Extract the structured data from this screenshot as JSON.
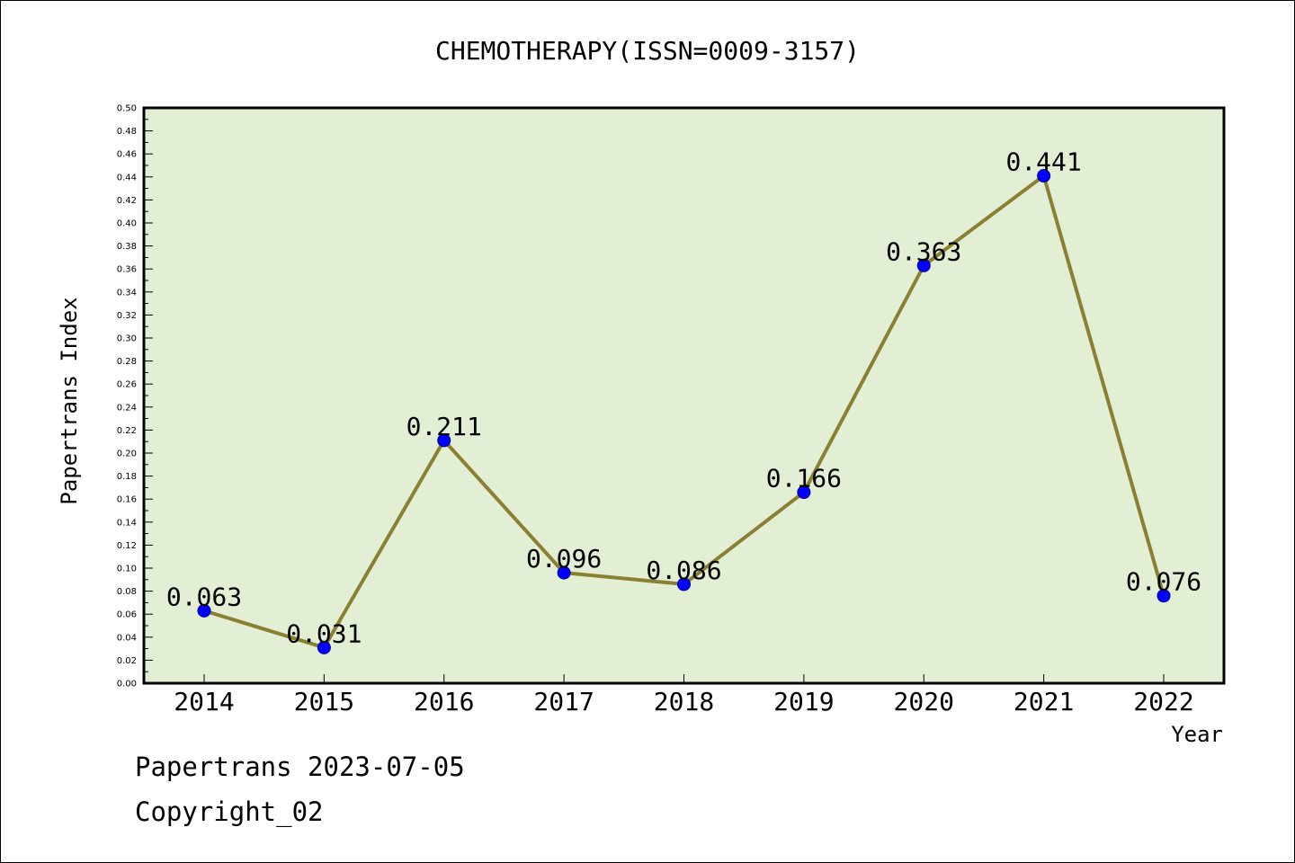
{
  "chart_data": {
    "type": "line",
    "title": "CHEMOTHERAPY(ISSN=0009-3157)",
    "xlabel": "Year",
    "ylabel": "Papertrans Index",
    "categories": [
      "2014",
      "2015",
      "2016",
      "2017",
      "2018",
      "2019",
      "2020",
      "2021",
      "2022"
    ],
    "values": [
      0.063,
      0.031,
      0.211,
      0.096,
      0.086,
      0.166,
      0.363,
      0.441,
      0.076
    ],
    "data_labels": [
      "0.063",
      "0.031",
      "0.211",
      "0.096",
      "0.086",
      "0.166",
      "0.363",
      "0.441",
      "0.076"
    ],
    "ylim": [
      0,
      0.5
    ],
    "yticks": [
      "0.00",
      "0.02",
      "0.04",
      "0.06",
      "0.08",
      "0.10",
      "0.12",
      "0.14",
      "0.16",
      "0.18",
      "0.20",
      "0.22",
      "0.24",
      "0.26",
      "0.28",
      "0.30",
      "0.32",
      "0.34",
      "0.36",
      "0.38",
      "0.40",
      "0.42",
      "0.44",
      "0.46",
      "0.48",
      "0.50"
    ],
    "grid": false,
    "colors": {
      "plot_background": "#e2efd5",
      "line": "#8b8032",
      "marker": "#0000ff",
      "axis": "#000000"
    }
  },
  "footer": {
    "source": "Papertrans 2023-07-05",
    "copyright": "Copyright_02"
  }
}
